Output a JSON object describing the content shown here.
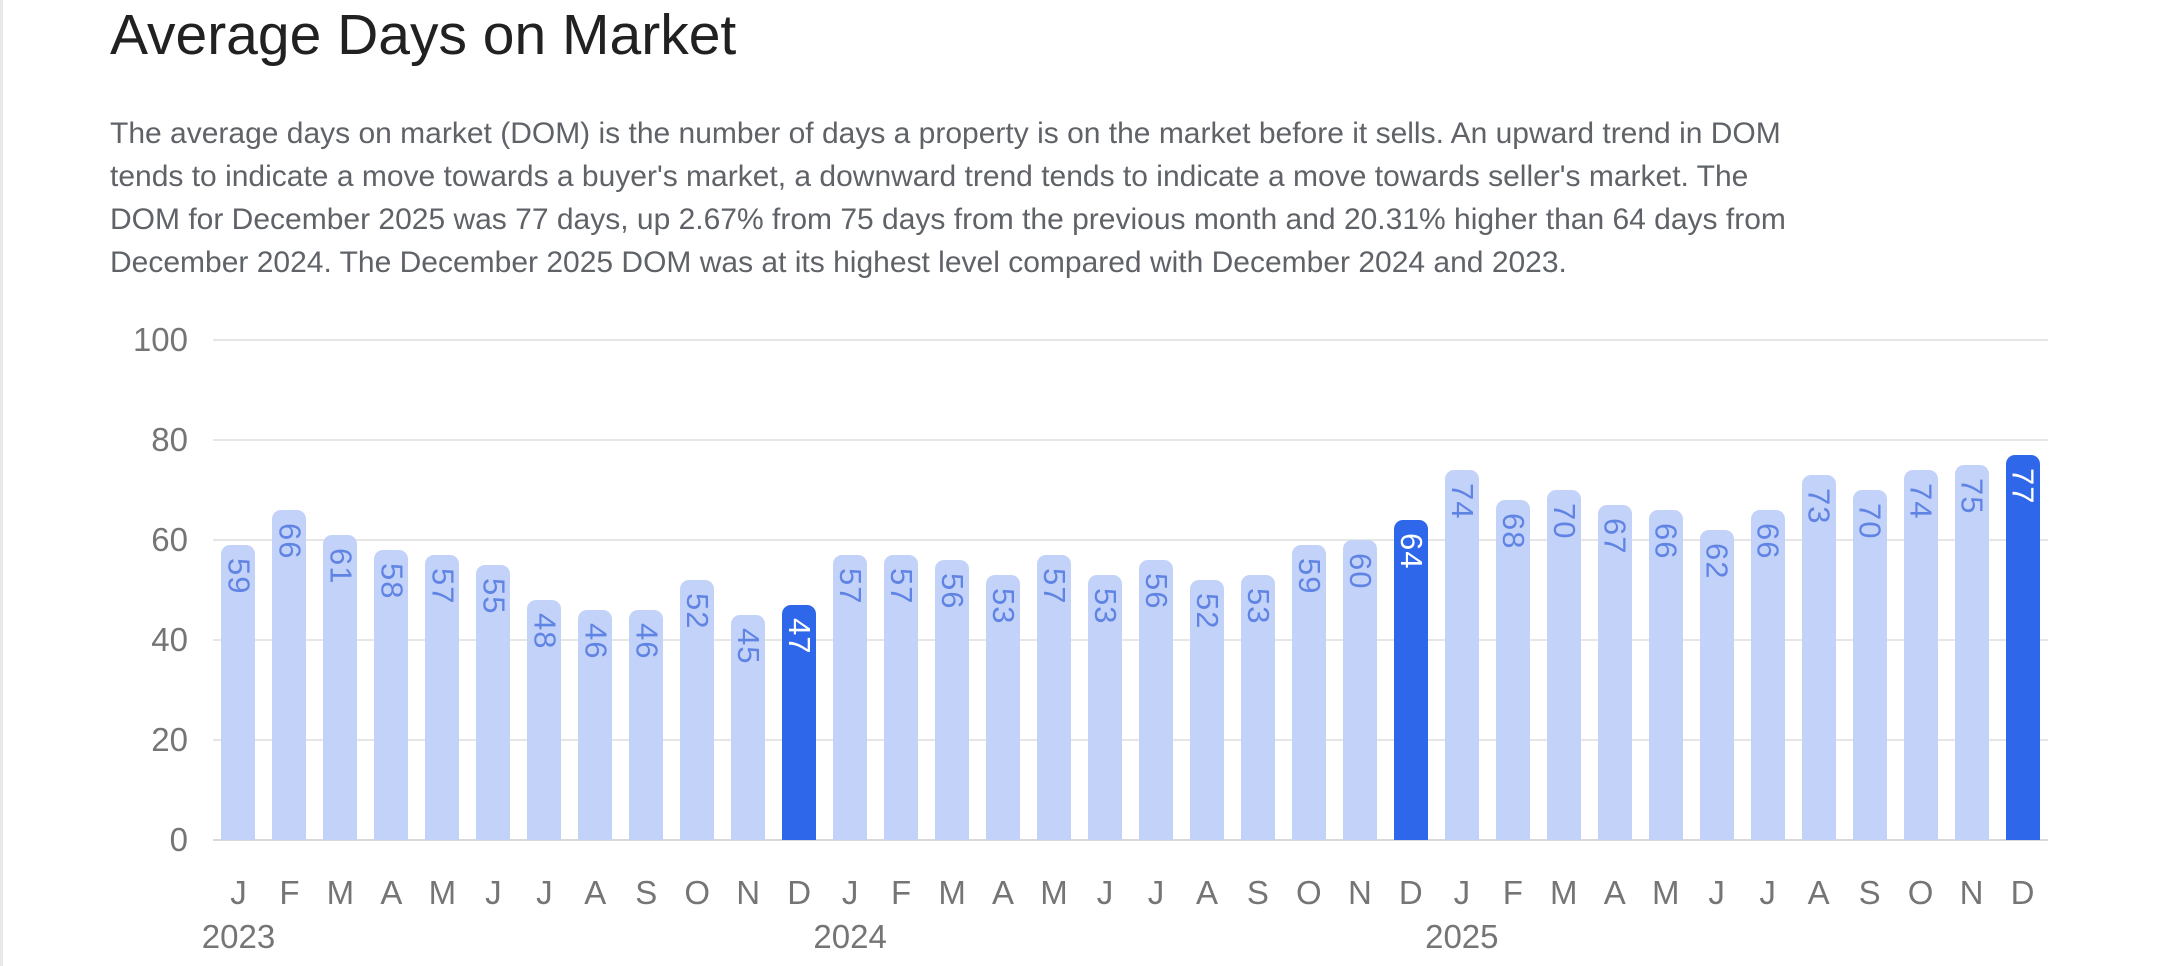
{
  "page": {
    "title": "Average Days on Market",
    "description_lines": [
      "The average days on market (DOM) is the number of days a property is on the market before it sells. An upward trend in DOM",
      "tends to indicate a move towards a buyer's market, a downward trend tends to indicate a move towards seller's market. The",
      "DOM for December 2025 was 77 days, up 2.67% from 75 days from the previous month and 20.31% higher than 64 days from",
      "December 2024. The December 2025 DOM was at its highest level compared with December 2024 and 2023."
    ]
  },
  "chart_data": {
    "type": "bar",
    "title": "Average Days on Market",
    "categories": [
      "J",
      "F",
      "M",
      "A",
      "M",
      "J",
      "J",
      "A",
      "S",
      "O",
      "N",
      "D",
      "J",
      "F",
      "M",
      "A",
      "M",
      "J",
      "J",
      "A",
      "S",
      "O",
      "N",
      "D",
      "J",
      "F",
      "M",
      "A",
      "M",
      "J",
      "J",
      "A",
      "S",
      "O",
      "N",
      "D"
    ],
    "values": [
      59,
      66,
      61,
      58,
      57,
      55,
      48,
      46,
      46,
      52,
      45,
      47,
      57,
      57,
      56,
      53,
      57,
      53,
      56,
      52,
      53,
      59,
      60,
      64,
      74,
      68,
      70,
      67,
      66,
      62,
      66,
      73,
      70,
      74,
      75,
      77
    ],
    "years": [
      {
        "label": "2023",
        "start_index": 0
      },
      {
        "label": "2024",
        "start_index": 12
      },
      {
        "label": "2025",
        "start_index": 24
      }
    ],
    "highlighted_indices": [
      11,
      23,
      35
    ],
    "xlabel": "",
    "ylabel": "",
    "ylim": [
      0,
      100
    ],
    "yticks": [
      0,
      20,
      40,
      60,
      80,
      100
    ],
    "grid": true,
    "legend": "none",
    "value_labels": "inside-top, rotated 90deg clockwise",
    "colors": {
      "bar": "#c3d2f8",
      "bar_highlight": "#2e67ea",
      "value_label": "#6084e4",
      "value_label_highlight": "#ffffff",
      "axis_text": "#757575",
      "gridline": "#e6e6e6",
      "baseline": "#d9d9d9",
      "title_text": "#212121",
      "description_text": "#5f6368"
    }
  }
}
